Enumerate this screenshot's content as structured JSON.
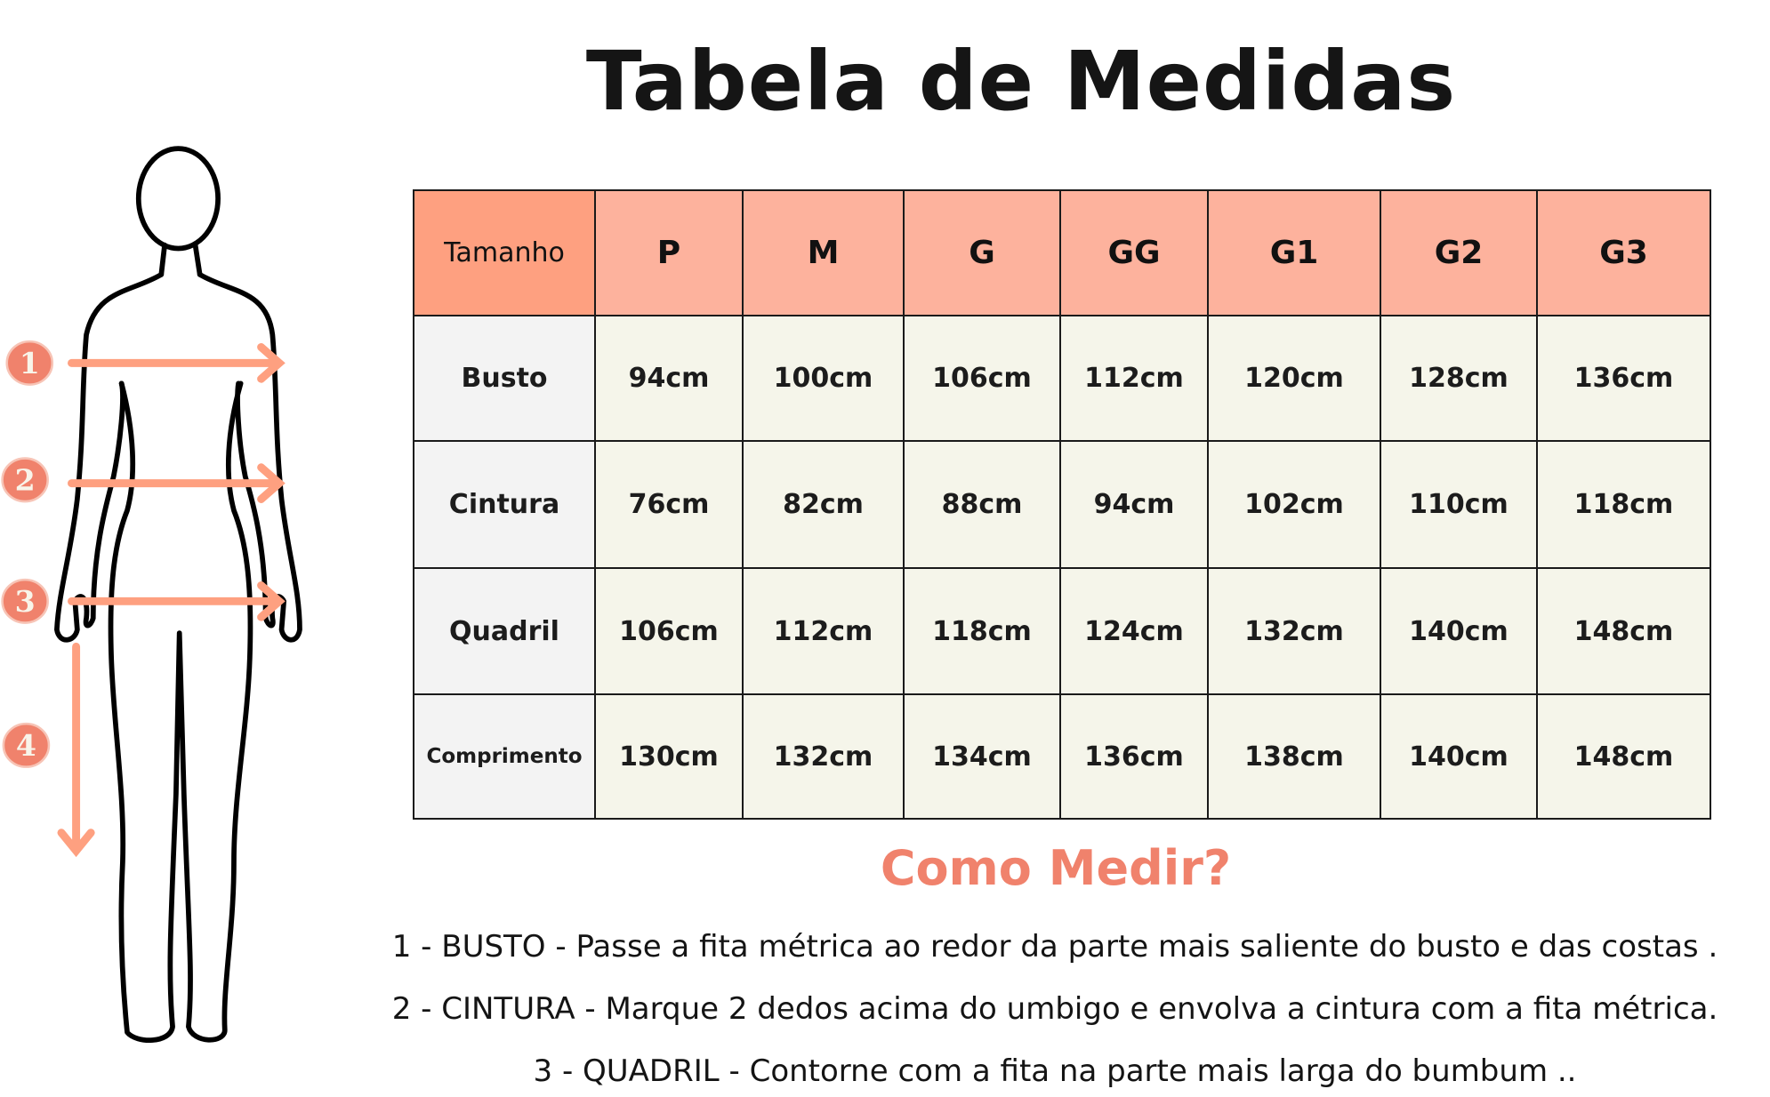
{
  "title": "Tabela de Medidas",
  "figure": {
    "markers": [
      "1",
      "2",
      "3",
      "4"
    ],
    "accent_color": "#fea080",
    "marker_color": "#f0826c"
  },
  "table": {
    "corner_label": "Tamanho",
    "sizes": [
      "P",
      "M",
      "G",
      "GG",
      "G1",
      "G2",
      "G3"
    ],
    "rows": [
      {
        "label": "Busto",
        "values": [
          "94cm",
          "100cm",
          "106cm",
          "112cm",
          "120cm",
          "128cm",
          "136cm"
        ]
      },
      {
        "label": "Cintura",
        "values": [
          "76cm",
          "82cm",
          "88cm",
          "94cm",
          "102cm",
          "110cm",
          "118cm"
        ]
      },
      {
        "label": "Quadril",
        "values": [
          "106cm",
          "112cm",
          "118cm",
          "124cm",
          "132cm",
          "140cm",
          "148cm"
        ]
      },
      {
        "label": "Comprimento",
        "values": [
          "130cm",
          "132cm",
          "134cm",
          "136cm",
          "138cm",
          "140cm",
          "148cm"
        ]
      }
    ]
  },
  "how_to": {
    "title": "Como Medir?",
    "instructions": [
      "1 - BUSTO - Passe a fita métrica ao redor da parte mais saliente do busto e das costas .",
      "2 - CINTURA - Marque 2 dedos acima do umbigo e envolva a cintura com a fita métrica.",
      "3 - QUADRIL - Contorne com a fita na parte mais larga do bumbum .."
    ]
  }
}
